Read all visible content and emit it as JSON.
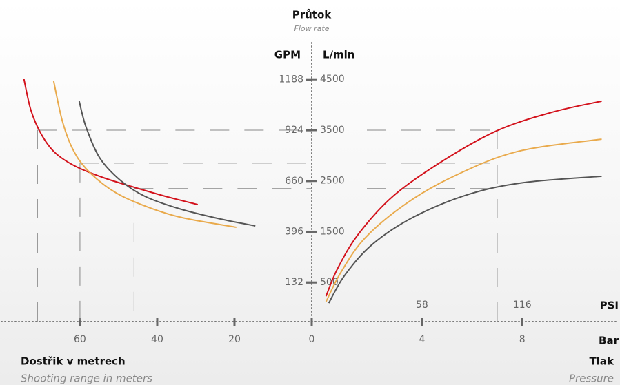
{
  "chart_data": [
    {
      "type": "line",
      "title": "Průtok",
      "subtitle": "Flow rate",
      "y_unit": "L/min",
      "y2_unit": "GPM",
      "xlabel": "Dostřik v metrech",
      "xlabel_sub": "Shooting range in meters",
      "xlim": [
        80.7,
        0
      ],
      "xticks": [
        60,
        40,
        20,
        0
      ],
      "ylim": [
        -270,
        4720
      ],
      "yticks": [
        500,
        1500,
        2500,
        3500,
        4500
      ],
      "y2lim": [
        -71.3,
        1247.0
      ],
      "y2ticks": [
        132,
        396,
        660,
        924,
        1188
      ],
      "series": [
        {
          "color": "#d3121c",
          "x": [
            74.5,
            72.7,
            70,
            66.4,
            61,
            53.9,
            45.9,
            37.9,
            29.5
          ],
          "values": [
            4505,
            3894,
            3419,
            3053,
            2782,
            2564,
            2374,
            2198,
            2035
          ]
        },
        {
          "color": "#e9aa4c",
          "x": [
            66.8,
            64.6,
            62,
            58.4,
            52.1,
            45,
            34.3,
            19.5
          ],
          "values": [
            4464,
            3691,
            3148,
            2741,
            2334,
            2062,
            1791,
            1588
          ]
        },
        {
          "color": "#555555",
          "x": [
            60.2,
            58.4,
            54.8,
            49.5,
            43.2,
            34.3,
            23.6,
            14.6
          ],
          "values": [
            4071,
            3555,
            2944,
            2510,
            2198,
            1954,
            1750,
            1615
          ]
        }
      ],
      "reference_lines": {
        "x": [
          71,
          60,
          46
        ],
        "y": [
          3500,
          2850,
          2350
        ]
      }
    },
    {
      "type": "line",
      "xlabel": "Tlak",
      "xlabel_sub": "Pressure",
      "x_unit": "Bar",
      "x2_unit": "PSI",
      "xlim": [
        -0.4,
        11.9
      ],
      "xticks": [
        4,
        8
      ],
      "x2lim": [
        -5.8,
        172.55
      ],
      "x2ticks": [
        58,
        116
      ],
      "ylim": [
        -270,
        4720
      ],
      "series": [
        {
          "color": "#d3121c",
          "x": [
            0.17,
            0.63,
            1.46,
            2.84,
            4.77,
            6.98,
            9.19,
            11.17
          ],
          "values": [
            231,
            773,
            1452,
            2198,
            2877,
            3487,
            3853,
            4071
          ]
        },
        {
          "color": "#e9aa4c",
          "x": [
            0.17,
            0.77,
            1.74,
            3.39,
            5.32,
            7.81,
            11.17
          ],
          "values": [
            122,
            706,
            1384,
            2062,
            2605,
            3080,
            3324
          ]
        },
        {
          "color": "#555555",
          "x": [
            0.28,
            0.91,
            2.01,
            3.67,
            5.88,
            8.08,
            11.17
          ],
          "values": [
            95,
            638,
            1248,
            1791,
            2239,
            2469,
            2592
          ]
        }
      ],
      "reference_lines": {
        "x": [
          7
        ]
      }
    }
  ]
}
